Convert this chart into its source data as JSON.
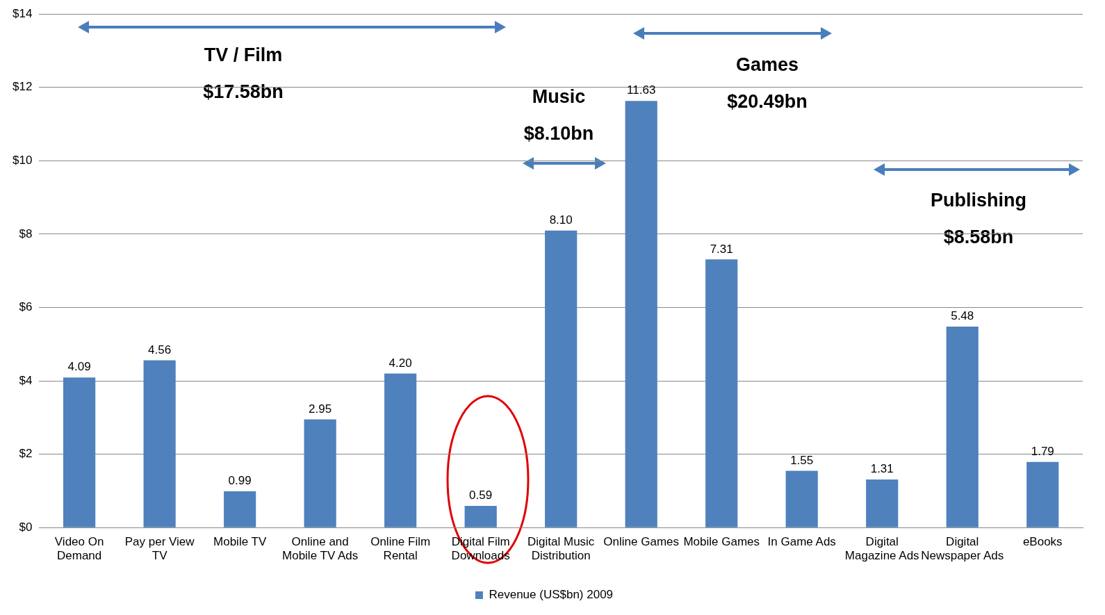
{
  "chart_data": {
    "type": "bar",
    "categories": [
      "Video On Demand",
      "Pay per View TV",
      "Mobile TV",
      "Online and Mobile TV Ads",
      "Online Film Rental",
      "Digital Film Downloads",
      "Digital Music Distribution",
      "Online Games",
      "Mobile Games",
      "In Game Ads",
      "Digital Magazine Ads",
      "Digital Newspaper Ads",
      "eBooks"
    ],
    "series": [
      {
        "name": "Revenue (US$bn) 2009",
        "color": "#4f81bd",
        "values": [
          4.09,
          4.56,
          0.99,
          2.95,
          4.2,
          0.59,
          8.1,
          11.63,
          7.31,
          1.55,
          1.31,
          5.48,
          1.79
        ],
        "value_labels": [
          "4.09",
          "4.56",
          "0.99",
          "2.95",
          "4.20",
          "0.59",
          "8.10",
          "11.63",
          "7.31",
          "1.55",
          "1.31",
          "5.48",
          "1.79"
        ]
      }
    ],
    "ylim": [
      0,
      14
    ],
    "yticks": [
      {
        "value": 0,
        "label": "$0"
      },
      {
        "value": 2,
        "label": "$2"
      },
      {
        "value": 4,
        "label": "$4"
      },
      {
        "value": 6,
        "label": "$6"
      },
      {
        "value": 8,
        "label": "$8"
      },
      {
        "value": 10,
        "label": "$10"
      },
      {
        "value": 12,
        "label": "$12"
      },
      {
        "value": 14,
        "label": "$14"
      }
    ],
    "grid": "y",
    "legend": "bottom",
    "annotations": [
      "TV / Film",
      "$17.58bn",
      "Music",
      "$8.10bn",
      "Games",
      "$20.49bn",
      "Publishing",
      "$8.58bn"
    ]
  }
}
